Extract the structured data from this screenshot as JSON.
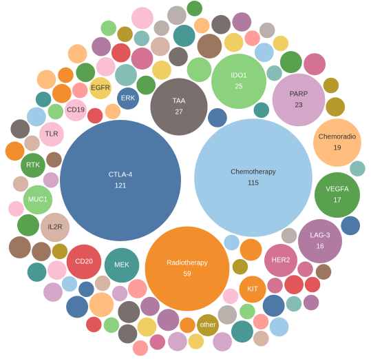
{
  "chart_data": {
    "type": "bubble",
    "categories": [
      "CTLA-4",
      "Chemotherapy",
      "Radiotherapy",
      "TAA",
      "IDO1",
      "PARP",
      "Chemoradio",
      "VEGFA",
      "LAG-3",
      "HER2",
      "KIT",
      "other",
      "MEK",
      "CD20",
      "IL2R",
      "MUC1",
      "RTK",
      "TLR",
      "CD19",
      "EGFR",
      "ERK",
      null,
      null,
      null,
      null,
      null,
      null,
      null,
      null,
      null,
      null,
      null,
      null,
      null,
      null,
      null,
      null,
      null,
      null,
      null,
      null,
      null,
      null,
      null,
      null,
      null,
      null,
      null,
      null,
      null,
      null,
      null,
      null,
      null,
      null,
      null,
      null,
      null,
      null,
      null,
      null,
      null,
      null,
      null,
      null,
      null,
      null,
      null,
      null,
      null,
      null,
      null,
      null,
      null,
      null,
      null,
      null,
      null,
      null,
      null,
      null,
      null,
      null,
      null,
      null,
      null,
      null,
      null,
      null,
      null,
      null,
      null,
      null,
      null,
      null,
      null,
      null,
      null,
      null,
      null,
      null,
      null,
      null,
      null,
      null,
      null,
      null,
      null,
      null,
      null,
      null,
      null,
      null,
      null,
      null,
      null,
      null,
      null,
      null,
      null,
      null
    ],
    "values": [
      121,
      115,
      59,
      27,
      25,
      23,
      19,
      17,
      16,
      9,
      6,
      4,
      10,
      10,
      7,
      7,
      5,
      5,
      4,
      4,
      4,
      3,
      2,
      4,
      2,
      3,
      5,
      2,
      3,
      2,
      4,
      2,
      3,
      3,
      2,
      4,
      2,
      3,
      2,
      5,
      2,
      3,
      2,
      2,
      4,
      3,
      2,
      3,
      4,
      2,
      3,
      2,
      4,
      3,
      2,
      2,
      3,
      5,
      2,
      3,
      2,
      3,
      2,
      4,
      3,
      2,
      2,
      3,
      2,
      4,
      3,
      2,
      3,
      2,
      3,
      4,
      2,
      2,
      3,
      3,
      2,
      4,
      2,
      3,
      2,
      3,
      2,
      4,
      3,
      2,
      2,
      3,
      2,
      2,
      3,
      2,
      4,
      3,
      2,
      3,
      2,
      2,
      3,
      4,
      2,
      3,
      2,
      2,
      3,
      2,
      3,
      3,
      2,
      3,
      2,
      2,
      3,
      2,
      4,
      2,
      2
    ],
    "colors": [
      "#4e79a7",
      "#a0cbe8",
      "#f28e2b",
      "#79706e",
      "#8cd17d",
      "#d4a6c8",
      "#ffbe7d",
      "#59a14f",
      "#b07aa1",
      "#d37295",
      "#f28e2b",
      "#b6992d",
      "#499894",
      "#e15759",
      "#d7b5a6",
      "#8cd17d",
      "#59a14f",
      "#fabfd2",
      "#fabfd2",
      "#f1ce63",
      "#4e79a7",
      "#4e79a7",
      "#a0cbe8",
      "#f28e2b",
      "#ffbe7d",
      "#59a14f",
      "#8cd17d",
      "#b6992d",
      "#f1ce63",
      "#499894",
      "#86bcb6",
      "#e15759",
      "#ff9d9a",
      "#79706e",
      "#bab0ac",
      "#d37295",
      "#fabfd2",
      "#b07aa1",
      "#d4a6c8",
      "#9d7660",
      "#d7b5a6",
      "#d7b5a6",
      "#9d7660",
      "#d4a6c8",
      "#b07aa1",
      "#fabfd2",
      "#d37295",
      "#bab0ac",
      "#79706e",
      "#ff9d9a",
      "#e15759",
      "#86bcb6",
      "#499894",
      "#f1ce63",
      "#b6992d",
      "#8cd17d",
      "#59a14f",
      "#ffbe7d",
      "#f28e2b",
      "#a0cbe8",
      "#4e79a7",
      "#e15759",
      "#8cd17d",
      "#4e79a7",
      "#f1ce63",
      "#d37295",
      "#86bcb6",
      "#f28e2b",
      "#bab0ac",
      "#59a14f",
      "#fabfd2",
      "#a0cbe8",
      "#b07aa1",
      "#ffbe7d",
      "#79706e",
      "#499894",
      "#ff9d9a",
      "#b6992d",
      "#d4a6c8",
      "#9d7660",
      "#d7b5a6",
      "#59a14f",
      "#ff9d9a",
      "#a0cbe8",
      "#f28e2b",
      "#79706e",
      "#f1ce63",
      "#4e79a7",
      "#d4a6c8",
      "#8cd17d",
      "#e15759",
      "#bab0ac",
      "#86bcb6",
      "#d37295",
      "#ffbe7d",
      "#499894",
      "#fabfd2",
      "#b6992d",
      "#d7b5a6",
      "#b07aa1",
      "#9d7660",
      "#f1ce63",
      "#4e79a7",
      "#d37295",
      "#8cd17d",
      "#ffbe7d",
      "#bab0ac",
      "#e15759",
      "#a0cbe8",
      "#59a14f",
      "#d4a6c8",
      "#f28e2b",
      "#86bcb6",
      "#79706e",
      "#fabfd2",
      "#b6992d",
      "#499894",
      "#ff9d9a",
      "#9d7660",
      "#b07aa1",
      "#d7b5a6"
    ]
  }
}
